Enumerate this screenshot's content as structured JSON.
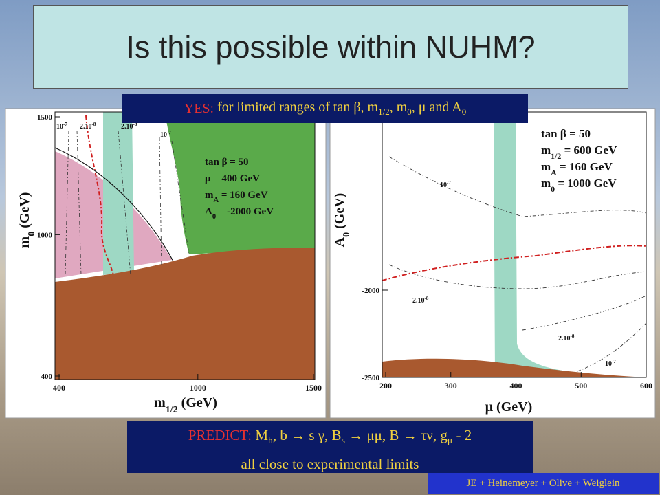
{
  "title": "Is this possible within NUHM?",
  "yes_box": {
    "label": "YES:",
    "parts": [
      "for limited ranges of tan β, m",
      "1/2",
      ", m",
      "0",
      ", μ and A",
      "0"
    ]
  },
  "left_plot": {
    "y_axis_label": [
      "m",
      "0",
      " (GeV)"
    ],
    "x_axis_label": [
      "m",
      "1/2",
      " (GeV)"
    ],
    "xticks": [
      400,
      1000,
      1500
    ],
    "yticks": [
      400,
      1000,
      1500
    ],
    "contour_labels": [
      [
        "10",
        "-7"
      ],
      [
        "2.10",
        "-8"
      ],
      [
        "2.10",
        "-8"
      ],
      [
        "10",
        "-7"
      ]
    ],
    "legend": [
      [
        "tan β = 50"
      ],
      [
        "μ = 400 GeV"
      ],
      [
        "m",
        "A",
        " = 160 GeV"
      ],
      [
        "A",
        "0",
        " = -2000 GeV"
      ]
    ]
  },
  "right_plot": {
    "y_axis_label": [
      "A",
      "0",
      " (GeV)"
    ],
    "x_axis_label": [
      "μ (GeV)"
    ],
    "xticks": [
      200,
      300,
      400,
      500,
      600
    ],
    "yticks": [
      -2000,
      -2500
    ],
    "contour_labels": [
      [
        "10",
        "-7"
      ],
      [
        "2.10",
        "-8"
      ],
      [
        "2.10",
        "-8"
      ],
      [
        "10",
        "-7"
      ]
    ],
    "legend": [
      [
        "tan β = 50"
      ],
      [
        "m",
        "1/2",
        " = 600 GeV"
      ],
      [
        "m",
        "A",
        " = 160 GeV"
      ],
      [
        "m",
        "0",
        " = 1000 GeV"
      ]
    ]
  },
  "predict_box": {
    "label": "PREDICT:",
    "parts": [
      "M",
      "h",
      ", b → s γ, B",
      "s",
      " → μμ, B → τν, g",
      "μ",
      " - 2"
    ],
    "line2": "all close to experimental limits"
  },
  "credit": "JE + Heinemeyer + Olive + Weiglein"
}
